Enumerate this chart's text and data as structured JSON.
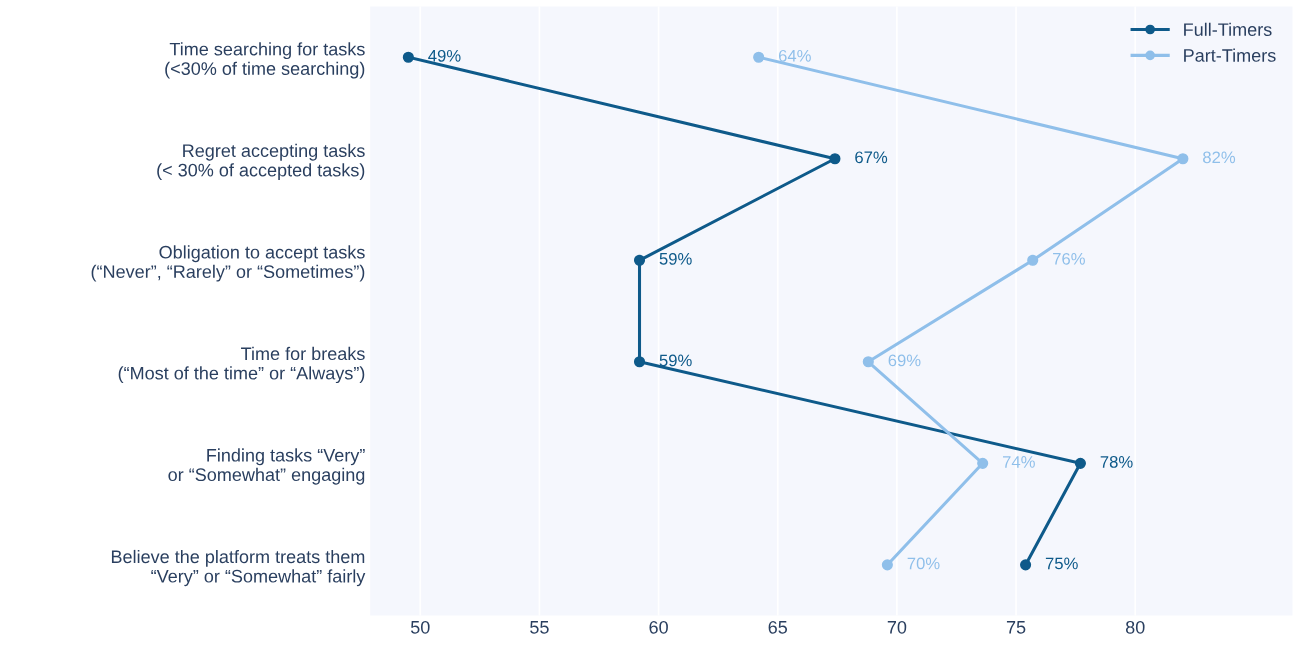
{
  "chart_data": {
    "type": "line",
    "orientation": "horizontal",
    "categories": [
      "Time searching for tasks\n(<30% of time searching)",
      "Regret accepting tasks\n(< 30% of accepted tasks)",
      "Obligation to accept tasks\n(“Never”, “Rarely” or “Sometimes”)",
      "Time for breaks\n(“Most of the time” or “Always”)",
      "Finding tasks “Very”\nor “Somewhat” engaging",
      "Believe the platform treats them\n“Very” or “Somewhat” fairly"
    ],
    "series": [
      {
        "name": "Full-Timers",
        "color": "#0e5a8a",
        "values": [
          49.5,
          67.4,
          59.2,
          59.2,
          77.7,
          75.4
        ],
        "value_labels": [
          "49%",
          "67%",
          "59%",
          "59%",
          "78%",
          "75%"
        ]
      },
      {
        "name": "Part-Timers",
        "color": "#8fbfea",
        "values": [
          64.2,
          82.0,
          75.7,
          68.8,
          73.6,
          69.6
        ],
        "value_labels": [
          "64%",
          "82%",
          "76%",
          "69%",
          "74%",
          "70%"
        ]
      }
    ],
    "xlim": [
      47.9,
      86.6
    ],
    "xticks": [
      50,
      55,
      60,
      65,
      70,
      75,
      80
    ],
    "grid": "x",
    "legend": "top right",
    "marker": "circle",
    "line_style": "solid"
  }
}
